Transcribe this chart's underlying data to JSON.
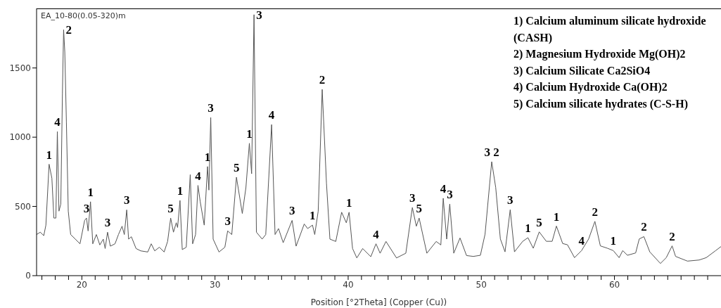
{
  "chart_data": {
    "type": "line",
    "xlabel": "Position [°2Theta] (Copper (Cu))",
    "x": [
      16.6,
      16.88,
      17.14,
      17.3,
      17.54,
      17.75,
      17.9,
      18.05,
      18.16,
      18.28,
      18.42,
      18.54,
      18.63,
      18.72,
      18.84,
      18.98,
      19.16,
      19.51,
      19.86,
      20.21,
      20.35,
      20.47,
      20.65,
      20.82,
      21.09,
      21.35,
      21.61,
      21.75,
      21.93,
      22.14,
      22.49,
      22.75,
      23.02,
      23.19,
      23.37,
      23.51,
      23.72,
      24.07,
      24.42,
      24.95,
      25.21,
      25.47,
      25.82,
      26.18,
      26.44,
      26.67,
      26.88,
      27.09,
      27.19,
      27.37,
      27.54,
      27.84,
      28.14,
      28.32,
      28.54,
      28.72,
      28.89,
      29.19,
      29.44,
      29.54,
      29.68,
      29.86,
      30.3,
      30.74,
      30.95,
      31.26,
      31.61,
      32.05,
      32.32,
      32.58,
      32.75,
      32.93,
      33.11,
      33.54,
      33.81,
      34.25,
      34.51,
      34.77,
      35.12,
      35.79,
      36.09,
      36.7,
      36.96,
      37.32,
      37.49,
      37.75,
      38.05,
      38.37,
      38.63,
      39.07,
      39.51,
      39.86,
      40.07,
      40.33,
      40.65,
      41.09,
      41.7,
      42.09,
      42.4,
      42.84,
      43.63,
      44.33,
      44.82,
      45.12,
      45.33,
      45.91,
      46.61,
      46.96,
      47.14,
      47.4,
      47.63,
      47.93,
      48.4,
      48.89,
      49.4,
      49.93,
      50.28,
      50.78,
      51.08,
      51.43,
      51.78,
      52.17,
      52.49,
      53.11,
      53.5,
      53.9,
      54.35,
      54.88,
      55.32,
      55.64,
      56.11,
      56.47,
      57.0,
      57.53,
      58.06,
      58.53,
      58.94,
      59.47,
      59.91,
      60.35,
      60.62,
      60.97,
      61.59,
      61.86,
      62.21,
      62.65,
      63.45,
      63.89,
      64.33,
      64.59,
      65.48,
      66.36,
      66.89,
      67.6,
      68.0
    ],
    "series": [
      {
        "color": "#555555",
        "values": [
          297,
          314,
          289,
          365,
          805,
          703,
          416,
          416,
          1041,
          466,
          517,
          1311,
          1776,
          1615,
          1108,
          466,
          297,
          264,
          230,
          399,
          416,
          323,
          534,
          230,
          297,
          222,
          264,
          196,
          314,
          213,
          230,
          297,
          357,
          297,
          475,
          264,
          281,
          196,
          179,
          171,
          230,
          179,
          205,
          171,
          247,
          416,
          314,
          382,
          348,
          543,
          188,
          205,
          729,
          230,
          297,
          652,
          534,
          365,
          788,
          618,
          1142,
          264,
          171,
          205,
          323,
          297,
          711,
          449,
          635,
          956,
          736,
          1885,
          314,
          264,
          297,
          1091,
          297,
          340,
          238,
          399,
          213,
          373,
          340,
          365,
          297,
          466,
          1345,
          669,
          264,
          247,
          458,
          382,
          458,
          196,
          128,
          196,
          137,
          230,
          162,
          247,
          128,
          162,
          492,
          357,
          416,
          162,
          247,
          222,
          559,
          264,
          517,
          162,
          272,
          145,
          139,
          147,
          299,
          823,
          637,
          265,
          172,
          476,
          172,
          248,
          274,
          198,
          316,
          248,
          248,
          358,
          232,
          223,
          130,
          181,
          265,
          392,
          215,
          198,
          181,
          130,
          181,
          147,
          164,
          265,
          282,
          172,
          88,
          130,
          215,
          139,
          105,
          113,
          130,
          181,
          210
        ]
      }
    ],
    "xlim": [
      16.6,
      68
    ],
    "xticks": [
      {
        "value": 17,
        "label": null
      },
      {
        "value": 18,
        "label": null
      },
      {
        "value": 19,
        "label": null
      },
      20,
      {
        "value": 21,
        "label": null
      },
      {
        "value": 22,
        "label": null
      },
      {
        "value": 23,
        "label": null
      },
      {
        "value": 24,
        "label": null
      },
      {
        "value": 25,
        "label": null
      },
      {
        "value": 26,
        "label": null
      },
      {
        "value": 27,
        "label": null
      },
      {
        "value": 28,
        "label": null
      },
      {
        "value": 29,
        "label": null
      },
      30,
      {
        "value": 31,
        "label": null
      },
      {
        "value": 32,
        "label": null
      },
      {
        "value": 33,
        "label": null
      },
      {
        "value": 34,
        "label": null
      },
      {
        "value": 35,
        "label": null
      },
      {
        "value": 36,
        "label": null
      },
      {
        "value": 37,
        "label": null
      },
      {
        "value": 38,
        "label": null
      },
      {
        "value": 39,
        "label": null
      },
      40,
      {
        "value": 41,
        "label": null
      },
      {
        "value": 42,
        "label": null
      },
      {
        "value": 43,
        "label": null
      },
      {
        "value": 44,
        "label": null
      },
      {
        "value": 45,
        "label": null
      },
      {
        "value": 46,
        "label": null
      },
      {
        "value": 47,
        "label": null
      },
      {
        "value": 48,
        "label": null
      },
      {
        "value": 49,
        "label": null
      },
      50,
      {
        "value": 51,
        "label": null
      },
      {
        "value": 52,
        "label": null
      },
      {
        "value": 53,
        "label": null
      },
      {
        "value": 54,
        "label": null
      },
      {
        "value": 55,
        "label": null
      },
      {
        "value": 56,
        "label": null
      },
      {
        "value": 57,
        "label": null
      },
      {
        "value": 58,
        "label": null
      },
      {
        "value": 59,
        "label": null
      },
      60,
      {
        "value": 61,
        "label": null
      },
      {
        "value": 62,
        "label": null
      },
      {
        "value": 63,
        "label": null
      },
      {
        "value": 64,
        "label": null
      },
      {
        "value": 65,
        "label": null
      },
      {
        "value": 66,
        "label": null
      },
      {
        "value": 67,
        "label": null
      }
    ],
    "ylim": [
      0,
      1930
    ],
    "yticks": [
      0,
      500,
      1000,
      1500
    ],
    "grid": false,
    "legend": false,
    "marker": "none",
    "line_style": "solid",
    "annotations": [
      "EA_10-80(0.05-320)m",
      "1) Calcium aluminum silicate hydroxide",
      "(CASH)",
      "2) Magnesium Hydroxide Mg(OH)2",
      "3) Calcium Silicate Ca2SiO4",
      "4) Calcium Hydroxide Ca(OH)2",
      "5) Calcium silicate hydrates (C-S-H)",
      {
        "text": "1",
        "x": 17.54,
        "y": 805
      },
      {
        "text": "4",
        "x": 18.16,
        "y": 1041
      },
      {
        "text": "2",
        "x": 18.63,
        "y": 1776
      },
      {
        "text": "3",
        "x": 20.35,
        "y": 416
      },
      {
        "text": "1",
        "x": 20.65,
        "y": 534
      },
      {
        "text": "3",
        "x": 21.93,
        "y": 314
      },
      {
        "text": "3",
        "x": 23.37,
        "y": 475
      },
      {
        "text": "5",
        "x": 26.67,
        "y": 416
      },
      {
        "text": "1",
        "x": 27.37,
        "y": 543
      },
      {
        "text": "4",
        "x": 28.72,
        "y": 652
      },
      {
        "text": "1",
        "x": 29.44,
        "y": 788
      },
      {
        "text": "3",
        "x": 29.68,
        "y": 1142
      },
      {
        "text": "3",
        "x": 30.95,
        "y": 323
      },
      {
        "text": "5",
        "x": 31.61,
        "y": 711
      },
      {
        "text": "1",
        "x": 32.58,
        "y": 956
      },
      {
        "text": "3",
        "x": 32.93,
        "y": 1885
      },
      {
        "text": "4",
        "x": 34.25,
        "y": 1091
      },
      {
        "text": "3",
        "x": 35.79,
        "y": 399
      },
      {
        "text": "1",
        "x": 37.32,
        "y": 365
      },
      {
        "text": "2",
        "x": 38.05,
        "y": 1345
      },
      {
        "text": "1",
        "x": 40.07,
        "y": 458
      },
      {
        "text": "4",
        "x": 42.09,
        "y": 230
      },
      {
        "text": "3",
        "x": 44.82,
        "y": 492
      },
      {
        "text": "5",
        "x": 45.33,
        "y": 416
      },
      {
        "text": "4",
        "x": 47.14,
        "y": 559
      },
      {
        "text": "3",
        "x": 47.63,
        "y": 517
      },
      {
        "text": "3 2",
        "x": 50.78,
        "y": 823
      },
      {
        "text": "3",
        "x": 52.17,
        "y": 476
      },
      {
        "text": "1",
        "x": 53.5,
        "y": 274
      },
      {
        "text": "5",
        "x": 54.35,
        "y": 316
      },
      {
        "text": "1",
        "x": 55.64,
        "y": 358
      },
      {
        "text": "4",
        "x": 57.53,
        "y": 181
      },
      {
        "text": "2",
        "x": 58.53,
        "y": 392
      },
      {
        "text": "1",
        "x": 59.91,
        "y": 181
      },
      {
        "text": "2",
        "x": 62.21,
        "y": 282
      },
      {
        "text": "2",
        "x": 64.33,
        "y": 215
      }
    ]
  }
}
